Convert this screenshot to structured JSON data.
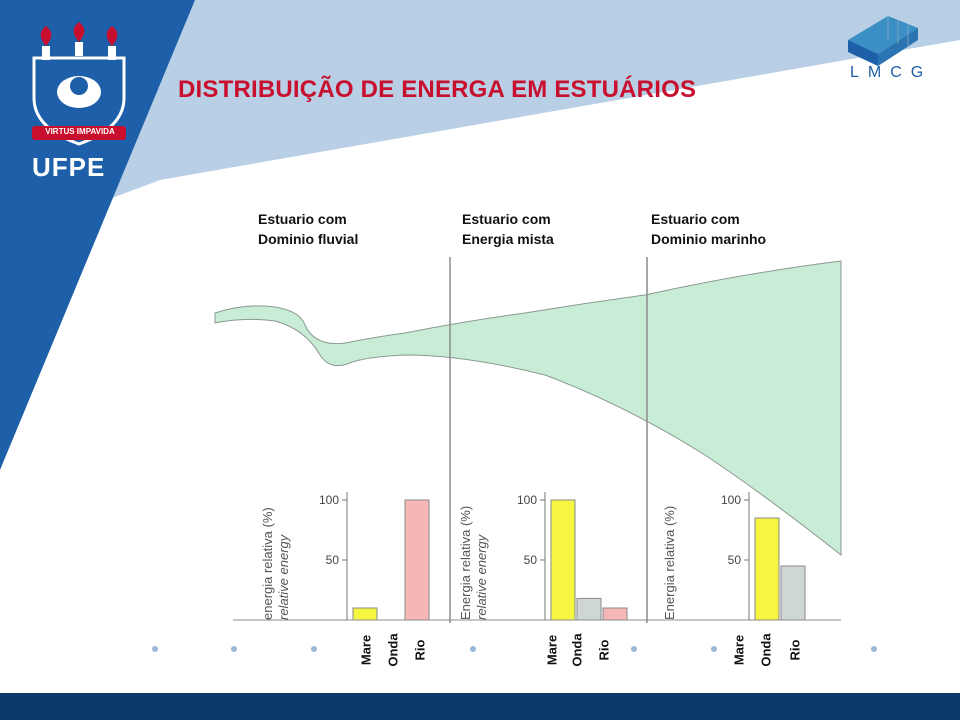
{
  "slide": {
    "title": "DISTRIBUIÇÃO  DE ENERGA EM ESTUÁRIOS",
    "logo_left": {
      "motto": "VIRTUS IMPAVIDA",
      "name": "UFPE"
    },
    "logo_right": {
      "name": "LMCG"
    }
  },
  "zones": [
    {
      "line1": "Estuario com",
      "line2": "Dominio fluvial"
    },
    {
      "line1": "Estuario com",
      "line2": "Energia mista"
    },
    {
      "line1": "Estuario com",
      "line2": "Dominio marinho"
    }
  ],
  "colors": {
    "primary_blue": "#1d5fa8",
    "light_blue": "#b9cfe6",
    "footer": "#0d3a6b",
    "title_red": "#c8102e",
    "estuary_green": "#c8ecd6",
    "mare": "#f5f542",
    "onda": "#cfd6d6",
    "rio": "#f6b6b6"
  },
  "chart_data": [
    {
      "type": "bar",
      "ylabel_lines": [
        "energia relativa (%)",
        "relative energy"
      ],
      "yticks": [
        50,
        100
      ],
      "ylim": [
        0,
        100
      ],
      "categories": [
        "Mare",
        "Onda",
        "Rio"
      ],
      "values": [
        10,
        0,
        100
      ]
    },
    {
      "type": "bar",
      "ylabel_lines": [
        "Energia relativa (%)",
        "relative energy"
      ],
      "yticks": [
        50,
        100
      ],
      "ylim": [
        0,
        100
      ],
      "categories": [
        "Mare",
        "Onda",
        "Rio"
      ],
      "values": [
        100,
        18,
        10
      ]
    },
    {
      "type": "bar",
      "ylabel_lines": [
        "Energia relativa (%)"
      ],
      "yticks": [
        50,
        100
      ],
      "ylim": [
        0,
        100
      ],
      "categories": [
        "Mare",
        "Onda",
        "Rio"
      ],
      "values": [
        85,
        45,
        0
      ]
    }
  ]
}
